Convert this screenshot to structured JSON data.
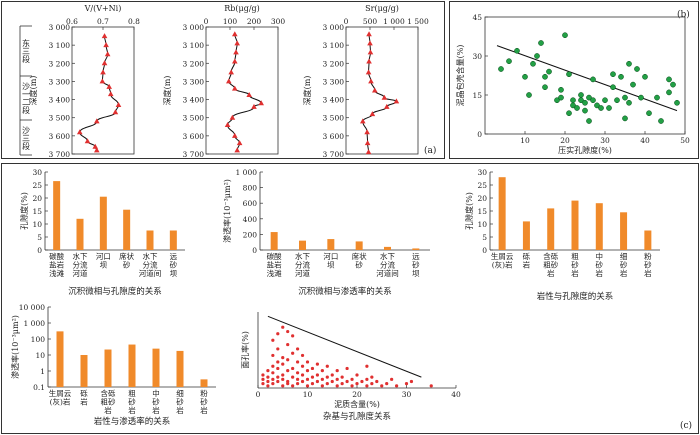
{
  "labels": {
    "panel_a": "(a)",
    "panel_b": "(b)",
    "panel_c": "(c)",
    "depth_label": "深度(m)",
    "strat": [
      "东三段",
      "沙一二段",
      "沙三段"
    ]
  },
  "chart_data": [
    {
      "id": "a1",
      "type": "line",
      "xlabel": "V/(V+Ni)",
      "ylabel": "深度(m)",
      "xlim": [
        0.6,
        0.8
      ],
      "xticks": [
        "0.6",
        "0.7",
        "0.8"
      ],
      "ylim": [
        3000,
        3700
      ],
      "yticks": [
        "3 000",
        "3 100",
        "3 200",
        "3 300",
        "3 400",
        "3 500",
        "3 600",
        "3 700"
      ],
      "points": [
        [
          0.705,
          3050
        ],
        [
          0.71,
          3100
        ],
        [
          0.715,
          3150
        ],
        [
          0.705,
          3200
        ],
        [
          0.7,
          3250
        ],
        [
          0.698,
          3300
        ],
        [
          0.72,
          3330
        ],
        [
          0.725,
          3370
        ],
        [
          0.75,
          3430
        ],
        [
          0.74,
          3470
        ],
        [
          0.68,
          3520
        ],
        [
          0.625,
          3580
        ],
        [
          0.65,
          3630
        ],
        [
          0.675,
          3660
        ],
        [
          0.68,
          3680
        ]
      ]
    },
    {
      "id": "a2",
      "type": "line",
      "xlabel": "Rb(μg/g)",
      "ylabel": "深度(m)",
      "xlim": [
        0,
        300
      ],
      "xticks": [
        "0",
        "100",
        "200",
        "300"
      ],
      "ylim": [
        3000,
        3700
      ],
      "yticks": [
        "3 000",
        "3 100",
        "3 200",
        "3 300",
        "3 400",
        "3 500",
        "3 600",
        "3 700"
      ],
      "points": [
        [
          120,
          3040
        ],
        [
          130,
          3090
        ],
        [
          125,
          3140
        ],
        [
          120,
          3190
        ],
        [
          105,
          3250
        ],
        [
          95,
          3300
        ],
        [
          120,
          3340
        ],
        [
          180,
          3375
        ],
        [
          230,
          3420
        ],
        [
          200,
          3440
        ],
        [
          110,
          3500
        ],
        [
          90,
          3540
        ],
        [
          120,
          3600
        ],
        [
          140,
          3640
        ],
        [
          130,
          3680
        ]
      ]
    },
    {
      "id": "a3",
      "type": "line",
      "xlabel": "Sr(μg/g)",
      "ylabel": "深度(m)",
      "xlim": [
        0,
        1500
      ],
      "xticks": [
        "0",
        "500",
        "1 000",
        "1 500"
      ],
      "ylim": [
        3000,
        3700
      ],
      "yticks": [
        "3 000",
        "3 100",
        "3 200",
        "3 300",
        "3 400",
        "3 500",
        "3 600",
        "3 700"
      ],
      "points": [
        [
          480,
          3040
        ],
        [
          500,
          3090
        ],
        [
          510,
          3140
        ],
        [
          480,
          3190
        ],
        [
          470,
          3250
        ],
        [
          520,
          3300
        ],
        [
          600,
          3350
        ],
        [
          800,
          3390
        ],
        [
          1050,
          3410
        ],
        [
          850,
          3440
        ],
        [
          550,
          3480
        ],
        [
          350,
          3520
        ],
        [
          440,
          3580
        ],
        [
          450,
          3640
        ],
        [
          470,
          3690
        ]
      ]
    },
    {
      "id": "b",
      "type": "scatter",
      "xlabel": "压实孔隙度(%)",
      "ylabel": "泥晶包壳含量(%)",
      "xlim": [
        0,
        50
      ],
      "ylim": [
        0,
        45
      ],
      "xticks": [
        "10",
        "20",
        "30",
        "40",
        "50"
      ],
      "yticks": [
        "0",
        "15",
        "30",
        "45"
      ],
      "trend": [
        [
          3,
          34
        ],
        [
          48,
          9
        ]
      ],
      "points": [
        [
          4,
          25
        ],
        [
          6,
          28
        ],
        [
          8,
          32
        ],
        [
          10,
          22
        ],
        [
          11,
          15
        ],
        [
          12,
          27
        ],
        [
          13,
          30
        ],
        [
          14,
          35
        ],
        [
          15,
          22
        ],
        [
          15,
          18
        ],
        [
          16,
          24
        ],
        [
          18,
          13
        ],
        [
          19,
          17
        ],
        [
          19,
          14
        ],
        [
          20,
          38
        ],
        [
          21,
          23
        ],
        [
          21,
          8
        ],
        [
          22,
          11
        ],
        [
          22,
          13
        ],
        [
          23,
          10
        ],
        [
          24,
          13
        ],
        [
          24,
          15
        ],
        [
          25,
          9
        ],
        [
          25,
          12
        ],
        [
          26,
          14
        ],
        [
          26,
          5
        ],
        [
          27,
          21
        ],
        [
          27,
          13
        ],
        [
          28,
          11
        ],
        [
          29,
          10
        ],
        [
          30,
          13
        ],
        [
          31,
          10
        ],
        [
          32,
          23
        ],
        [
          32,
          18
        ],
        [
          33,
          13
        ],
        [
          34,
          22
        ],
        [
          35,
          14
        ],
        [
          35,
          6
        ],
        [
          36,
          12
        ],
        [
          36,
          27
        ],
        [
          37,
          19
        ],
        [
          38,
          25
        ],
        [
          39,
          14
        ],
        [
          40,
          22
        ],
        [
          41,
          8
        ],
        [
          43,
          14
        ],
        [
          44,
          5
        ],
        [
          46,
          21
        ],
        [
          46,
          16
        ],
        [
          47,
          19
        ],
        [
          48,
          12
        ]
      ]
    },
    {
      "id": "c1",
      "type": "bar",
      "title": "沉积微相与孔隙度的关系",
      "ylabel": "孔隙度(%)",
      "ylim": [
        0,
        30
      ],
      "yticks": [
        "0",
        "5",
        "10",
        "15",
        "20",
        "25",
        "30"
      ],
      "categories": [
        "碳酸\n盐岩\n浅滩",
        "水下\n分流\n河道",
        "河口\n坝",
        "席状\n砂",
        "水下\n分流\n河道间",
        "远\n砂\n坝"
      ],
      "values": [
        26.5,
        12,
        20.5,
        15.5,
        7.5,
        7.5
      ]
    },
    {
      "id": "c2",
      "type": "bar",
      "title": "沉积微相与渗透率的关系",
      "ylabel": "渗透率(10⁻³μm²)",
      "ylim": [
        0,
        1000
      ],
      "yticks": [
        "0",
        "200",
        "400",
        "600",
        "800",
        "1 000"
      ],
      "categories": [
        "碳酸\n盐岩\n浅滩",
        "水下\n分流\n河道",
        "河口\n坝",
        "席状\n砂",
        "水下\n分流\n河道间",
        "远\n砂\n坝"
      ],
      "values": [
        230,
        120,
        140,
        110,
        40,
        20
      ]
    },
    {
      "id": "c3",
      "type": "bar",
      "title": "岩性与孔隙度的关系",
      "ylabel": "孔隙度(%)",
      "ylim": [
        0,
        30
      ],
      "yticks": [
        "0",
        "5",
        "10",
        "15",
        "20",
        "25",
        "30"
      ],
      "categories": [
        "生屑云\n(灰)岩",
        "砾\n岩",
        "含砾\n粗砂\n岩",
        "粗\n砂\n岩",
        "中\n砂\n岩",
        "细\n砂\n岩",
        "粉\n砂\n岩"
      ],
      "values": [
        28,
        11,
        16,
        19,
        18,
        14.5,
        7.5
      ]
    },
    {
      "id": "c4",
      "type": "bar",
      "scale": "log",
      "title": "岩性与渗透率的关系",
      "ylabel": "渗透率(10⁻³μm²)",
      "ylim": [
        0.1,
        10000
      ],
      "yticks": [
        "0.1",
        "1",
        "10",
        "100",
        "1 000",
        "10 000"
      ],
      "categories": [
        "生屑云\n(灰)岩",
        "砾\n岩",
        "含砾\n粗砂\n岩",
        "粗\n砂\n岩",
        "中\n砂\n岩",
        "细\n砂\n岩",
        "粉\n砂\n岩"
      ],
      "values": [
        300,
        10,
        22,
        45,
        25,
        18,
        0.3
      ]
    },
    {
      "id": "c5",
      "type": "scatter",
      "title": "杂基与孔隙度关系",
      "xlabel": "泥质含量(%)",
      "ylabel": "面孔率(%)",
      "xlim": [
        0,
        40
      ],
      "ylim": [
        0,
        35
      ],
      "xticks": [
        "0",
        "10",
        "20",
        "30",
        "40"
      ],
      "yticks": [],
      "trend": [
        [
          2,
          33
        ],
        [
          33,
          5
        ]
      ],
      "points": [
        [
          1,
          2
        ],
        [
          1,
          4
        ],
        [
          1,
          6
        ],
        [
          2,
          1
        ],
        [
          2,
          3
        ],
        [
          2,
          5
        ],
        [
          2,
          8
        ],
        [
          3,
          2
        ],
        [
          3,
          4
        ],
        [
          3,
          7
        ],
        [
          3,
          10
        ],
        [
          3,
          15
        ],
        [
          3,
          22
        ],
        [
          4,
          3
        ],
        [
          4,
          5
        ],
        [
          4,
          9
        ],
        [
          4,
          12
        ],
        [
          4,
          18
        ],
        [
          4,
          25
        ],
        [
          5,
          1
        ],
        [
          5,
          4
        ],
        [
          5,
          6
        ],
        [
          5,
          11
        ],
        [
          5,
          14
        ],
        [
          5,
          28
        ],
        [
          6,
          2
        ],
        [
          6,
          3
        ],
        [
          6,
          8
        ],
        [
          6,
          13
        ],
        [
          6,
          20
        ],
        [
          6,
          26
        ],
        [
          7,
          1
        ],
        [
          7,
          5
        ],
        [
          7,
          9
        ],
        [
          7,
          16
        ],
        [
          7,
          24
        ],
        [
          8,
          2
        ],
        [
          8,
          4
        ],
        [
          8,
          7
        ],
        [
          8,
          12
        ],
        [
          8,
          18
        ],
        [
          9,
          3
        ],
        [
          9,
          6
        ],
        [
          9,
          10
        ],
        [
          9,
          15
        ],
        [
          10,
          1
        ],
        [
          10,
          4
        ],
        [
          10,
          8
        ],
        [
          10,
          12
        ],
        [
          11,
          2
        ],
        [
          11,
          5
        ],
        [
          11,
          9
        ],
        [
          12,
          3
        ],
        [
          12,
          6
        ],
        [
          12,
          11
        ],
        [
          13,
          1
        ],
        [
          13,
          4
        ],
        [
          13,
          8
        ],
        [
          14,
          2
        ],
        [
          14,
          5
        ],
        [
          14,
          10
        ],
        [
          15,
          3
        ],
        [
          15,
          6
        ],
        [
          16,
          1
        ],
        [
          16,
          4
        ],
        [
          16,
          8
        ],
        [
          17,
          2
        ],
        [
          17,
          5
        ],
        [
          18,
          3
        ],
        [
          18,
          9
        ],
        [
          19,
          1
        ],
        [
          19,
          4
        ],
        [
          20,
          2
        ],
        [
          20,
          6
        ],
        [
          21,
          3
        ],
        [
          22,
          1
        ],
        [
          22,
          4
        ],
        [
          22,
          10
        ],
        [
          23,
          2
        ],
        [
          23,
          5
        ],
        [
          24,
          3
        ],
        [
          25,
          1
        ],
        [
          26,
          2
        ],
        [
          27,
          4
        ],
        [
          28,
          1
        ],
        [
          30,
          2
        ],
        [
          31,
          3
        ],
        [
          35,
          1
        ]
      ]
    }
  ]
}
